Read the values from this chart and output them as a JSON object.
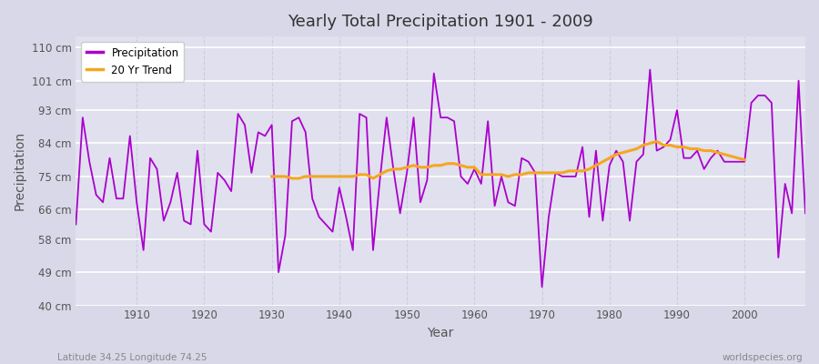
{
  "title": "Yearly Total Precipitation 1901 - 2009",
  "xlabel": "Year",
  "ylabel": "Precipitation",
  "footnote_left": "Latitude 34.25 Longitude 74.25",
  "footnote_right": "worldspecies.org",
  "legend_labels": [
    "Precipitation",
    "20 Yr Trend"
  ],
  "precip_color": "#aa00cc",
  "trend_color": "#f5a623",
  "background_color": "#d8d8e8",
  "plot_bg_color": "#e0e0ee",
  "grid_color_h": "#ffffff",
  "grid_color_v": "#ccccdd",
  "ylim": [
    40,
    113
  ],
  "yticks": [
    40,
    49,
    58,
    66,
    75,
    84,
    93,
    101,
    110
  ],
  "ytick_labels": [
    "40 cm",
    "49 cm",
    "58 cm",
    "66 cm",
    "75 cm",
    "84 cm",
    "93 cm",
    "101 cm",
    "110 cm"
  ],
  "xticks": [
    1910,
    1920,
    1930,
    1940,
    1950,
    1960,
    1970,
    1980,
    1990,
    2000
  ],
  "years": [
    1901,
    1902,
    1903,
    1904,
    1905,
    1906,
    1907,
    1908,
    1909,
    1910,
    1911,
    1912,
    1913,
    1914,
    1915,
    1916,
    1917,
    1918,
    1919,
    1920,
    1921,
    1922,
    1923,
    1924,
    1925,
    1926,
    1927,
    1928,
    1929,
    1930,
    1931,
    1932,
    1933,
    1934,
    1935,
    1936,
    1937,
    1938,
    1939,
    1940,
    1941,
    1942,
    1943,
    1944,
    1945,
    1946,
    1947,
    1948,
    1949,
    1950,
    1951,
    1952,
    1953,
    1954,
    1955,
    1956,
    1957,
    1958,
    1959,
    1960,
    1961,
    1962,
    1963,
    1964,
    1965,
    1966,
    1967,
    1968,
    1969,
    1970,
    1971,
    1972,
    1973,
    1974,
    1975,
    1976,
    1977,
    1978,
    1979,
    1980,
    1981,
    1982,
    1983,
    1984,
    1985,
    1986,
    1987,
    1988,
    1989,
    1990,
    1991,
    1992,
    1993,
    1994,
    1995,
    1996,
    1997,
    1998,
    1999,
    2000,
    2001,
    2002,
    2003,
    2004,
    2005,
    2006,
    2007,
    2008,
    2009
  ],
  "precip": [
    62,
    91,
    79,
    70,
    68,
    80,
    69,
    69,
    86,
    68,
    55,
    80,
    77,
    63,
    68,
    76,
    63,
    62,
    82,
    62,
    60,
    76,
    74,
    71,
    92,
    89,
    76,
    87,
    86,
    89,
    49,
    59,
    90,
    91,
    87,
    69,
    64,
    62,
    60,
    72,
    64,
    55,
    92,
    91,
    55,
    74,
    91,
    77,
    65,
    76,
    91,
    68,
    74,
    103,
    91,
    91,
    90,
    75,
    73,
    77,
    73,
    90,
    67,
    75,
    68,
    67,
    80,
    79,
    76,
    45,
    64,
    76,
    75,
    75,
    75,
    83,
    64,
    82,
    63,
    78,
    82,
    79,
    63,
    79,
    81,
    104,
    82,
    83,
    85,
    93,
    80,
    80,
    82,
    77,
    80,
    82,
    79,
    79,
    79,
    79,
    95,
    97,
    97,
    95,
    53,
    73,
    65,
    101,
    65
  ],
  "trend": [
    null,
    null,
    null,
    null,
    null,
    null,
    null,
    null,
    null,
    null,
    null,
    null,
    null,
    null,
    null,
    null,
    null,
    null,
    null,
    null,
    null,
    null,
    null,
    null,
    null,
    null,
    null,
    null,
    null,
    75.0,
    75.0,
    75.0,
    74.5,
    74.5,
    75.0,
    75.0,
    75.0,
    75.0,
    75.0,
    75.0,
    75.0,
    75.0,
    75.5,
    75.5,
    74.5,
    75.5,
    76.5,
    77.0,
    77.0,
    77.5,
    78.0,
    77.5,
    77.5,
    78.0,
    78.0,
    78.5,
    78.5,
    78.0,
    77.5,
    77.5,
    75.5,
    75.5,
    75.5,
    75.5,
    75.0,
    75.5,
    75.5,
    76.0,
    76.0,
    76.0,
    76.0,
    76.0,
    76.0,
    76.5,
    76.5,
    76.5,
    77.0,
    78.0,
    79.0,
    80.0,
    81.0,
    81.5,
    82.0,
    82.5,
    83.5,
    84.0,
    84.5,
    83.5,
    83.5,
    83.0,
    83.0,
    82.5,
    82.5,
    82.0,
    82.0,
    81.5,
    81.0,
    80.5,
    80.0,
    79.5,
    null,
    null,
    null,
    null,
    null,
    null,
    null,
    null,
    null
  ]
}
